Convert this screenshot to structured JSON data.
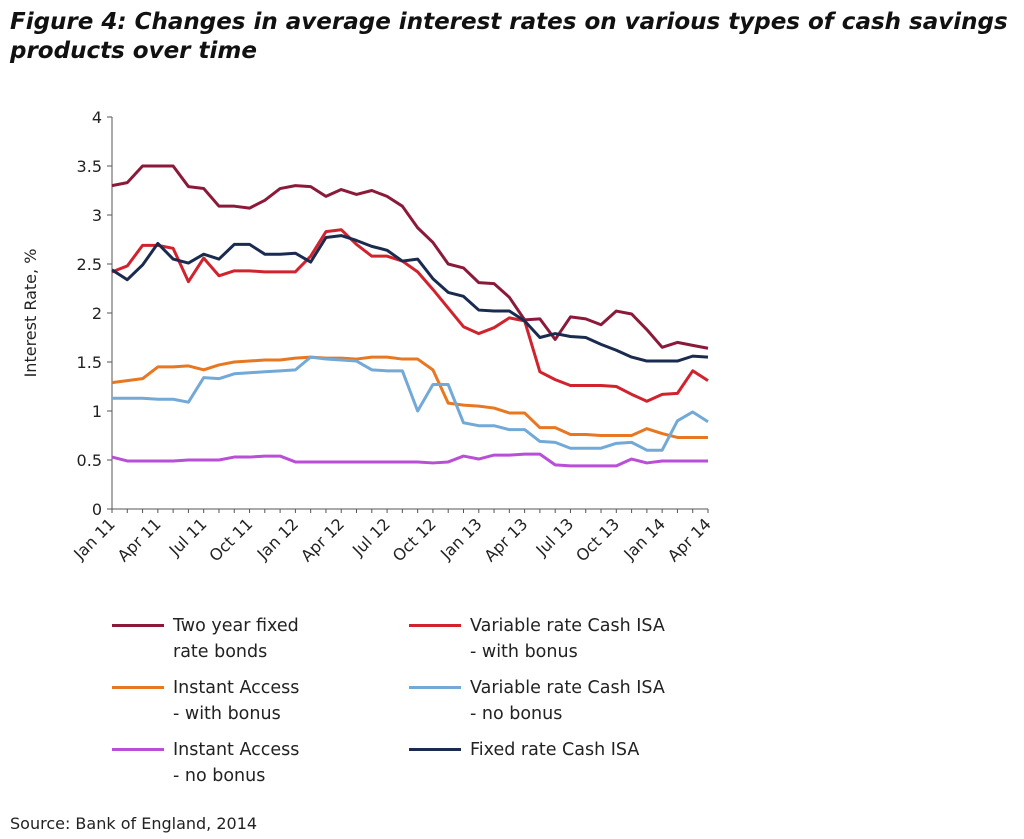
{
  "chart_data": {
    "type": "line",
    "title": "Figure 4: Changes in average interest rates on various types of cash savings products over time",
    "y_label": "Interest Rate, %",
    "source": "Source: Bank of England, 2014",
    "categories": [
      "Jan 11",
      null,
      null,
      "Apr 11",
      null,
      null,
      "Jul 11",
      null,
      null,
      "Oct 11",
      null,
      null,
      "Jan 12",
      null,
      null,
      "Apr 12",
      null,
      null,
      "Jul 12",
      null,
      null,
      "Oct 12",
      null,
      null,
      "Jan 13",
      null,
      null,
      "Apr 13",
      null,
      null,
      "Jul 13",
      null,
      null,
      "Oct 13",
      null,
      null,
      "Jan 14",
      null,
      null,
      "Apr 14"
    ],
    "ylim": [
      0,
      4
    ],
    "yticks": [
      0,
      0.5,
      1,
      1.5,
      2,
      2.5,
      3,
      3.5,
      4
    ],
    "series": [
      {
        "name": "Two year fixed\nrate bonds",
        "color": "#8b1a3a",
        "values": [
          3.3,
          3.33,
          3.5,
          3.5,
          3.5,
          3.29,
          3.27,
          3.09,
          3.09,
          3.07,
          3.15,
          3.27,
          3.3,
          3.29,
          3.19,
          3.26,
          3.21,
          3.25,
          3.19,
          3.09,
          2.87,
          2.72,
          2.5,
          2.46,
          2.31,
          2.3,
          2.16,
          1.93,
          1.94,
          1.73,
          1.96,
          1.94,
          1.88,
          2.02,
          1.99,
          1.83,
          1.65,
          1.7,
          1.67,
          1.64
        ]
      },
      {
        "name": "Variable rate Cash ISA\n- with bonus",
        "color": "#d1232e",
        "values": [
          2.42,
          2.48,
          2.69,
          2.69,
          2.66,
          2.32,
          2.56,
          2.38,
          2.43,
          2.43,
          2.42,
          2.42,
          2.42,
          2.58,
          2.83,
          2.85,
          2.7,
          2.58,
          2.58,
          2.53,
          2.42,
          2.24,
          2.05,
          1.86,
          1.79,
          1.85,
          1.95,
          1.92,
          1.4,
          1.32,
          1.26,
          1.26,
          1.26,
          1.25,
          1.17,
          1.1,
          1.17,
          1.18,
          1.41,
          1.31
        ]
      },
      {
        "name": "Instant Access\n- with bonus",
        "color": "#e87722",
        "values": [
          1.29,
          1.31,
          1.33,
          1.45,
          1.45,
          1.46,
          1.42,
          1.47,
          1.5,
          1.51,
          1.52,
          1.52,
          1.54,
          1.55,
          1.54,
          1.54,
          1.53,
          1.55,
          1.55,
          1.53,
          1.53,
          1.42,
          1.08,
          1.06,
          1.05,
          1.03,
          0.98,
          0.98,
          0.83,
          0.83,
          0.76,
          0.76,
          0.75,
          0.75,
          0.75,
          0.82,
          0.77,
          0.73,
          0.73,
          0.73
        ]
      },
      {
        "name": "Variable rate Cash ISA\n- no bonus",
        "color": "#72a9d6",
        "values": [
          1.13,
          1.13,
          1.13,
          1.12,
          1.12,
          1.09,
          1.34,
          1.33,
          1.38,
          1.39,
          1.4,
          1.41,
          1.42,
          1.55,
          1.53,
          1.52,
          1.51,
          1.42,
          1.41,
          1.41,
          1.0,
          1.27,
          1.27,
          0.88,
          0.85,
          0.85,
          0.81,
          0.81,
          0.69,
          0.68,
          0.62,
          0.62,
          0.62,
          0.67,
          0.68,
          0.6,
          0.6,
          0.9,
          0.99,
          0.89
        ]
      },
      {
        "name": "Instant Access\n- no bonus",
        "color": "#b84fd6",
        "values": [
          0.53,
          0.49,
          0.49,
          0.49,
          0.49,
          0.5,
          0.5,
          0.5,
          0.53,
          0.53,
          0.54,
          0.54,
          0.48,
          0.48,
          0.48,
          0.48,
          0.48,
          0.48,
          0.48,
          0.48,
          0.48,
          0.47,
          0.48,
          0.54,
          0.51,
          0.55,
          0.55,
          0.56,
          0.56,
          0.45,
          0.44,
          0.44,
          0.44,
          0.44,
          0.51,
          0.47,
          0.49,
          0.49,
          0.49,
          0.49
        ]
      },
      {
        "name": "Fixed rate Cash ISA",
        "color": "#1a2b4f",
        "values": [
          2.44,
          2.34,
          2.49,
          2.71,
          2.55,
          2.51,
          2.6,
          2.55,
          2.7,
          2.7,
          2.6,
          2.6,
          2.61,
          2.52,
          2.77,
          2.79,
          2.74,
          2.68,
          2.64,
          2.53,
          2.55,
          2.35,
          2.21,
          2.17,
          2.03,
          2.02,
          2.02,
          1.92,
          1.75,
          1.79,
          1.76,
          1.75,
          1.68,
          1.62,
          1.55,
          1.51,
          1.51,
          1.51,
          1.56,
          1.55
        ]
      }
    ]
  }
}
